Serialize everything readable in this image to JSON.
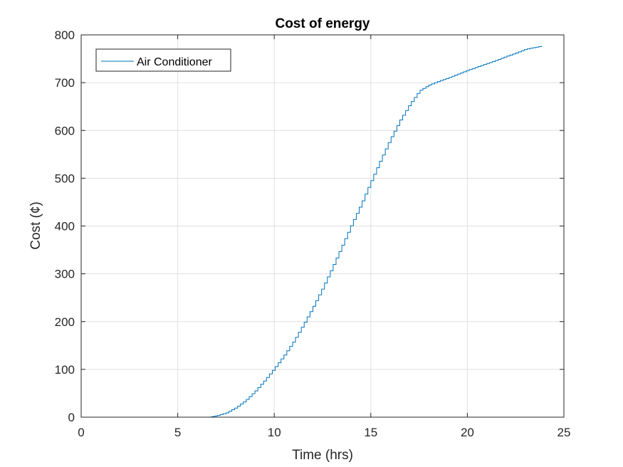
{
  "chart_data": {
    "type": "line",
    "title": "Cost of energy",
    "xlabel": "Time (hrs)",
    "ylabel": "Cost (¢)",
    "xlim": [
      0,
      25
    ],
    "ylim": [
      0,
      800
    ],
    "xticks": [
      0,
      5,
      10,
      15,
      20,
      25
    ],
    "yticks": [
      0,
      100,
      200,
      300,
      400,
      500,
      600,
      700,
      800
    ],
    "grid": true,
    "legend_position": "top-left",
    "series": [
      {
        "name": "Air Conditioner",
        "color": "#0072BD",
        "step": 0.15,
        "x": [
          0,
          6.6,
          7,
          7.5,
          8,
          8.5,
          9,
          9.5,
          10,
          10.5,
          11,
          11.5,
          12,
          12.5,
          13,
          13.5,
          14,
          14.5,
          15,
          15.5,
          16,
          16.5,
          17,
          17.5,
          18,
          18.5,
          19,
          19.5,
          20,
          20.5,
          21,
          21.5,
          22,
          22.5,
          23,
          23.5,
          23.9
        ],
        "y": [
          0,
          0,
          3,
          9,
          20,
          35,
          55,
          78,
          103,
          130,
          160,
          195,
          232,
          272,
          315,
          360,
          405,
          448,
          495,
          540,
          583,
          622,
          655,
          683,
          695,
          703,
          710,
          718,
          726,
          733,
          740,
          747,
          755,
          762,
          770,
          774,
          777
        ]
      }
    ]
  }
}
